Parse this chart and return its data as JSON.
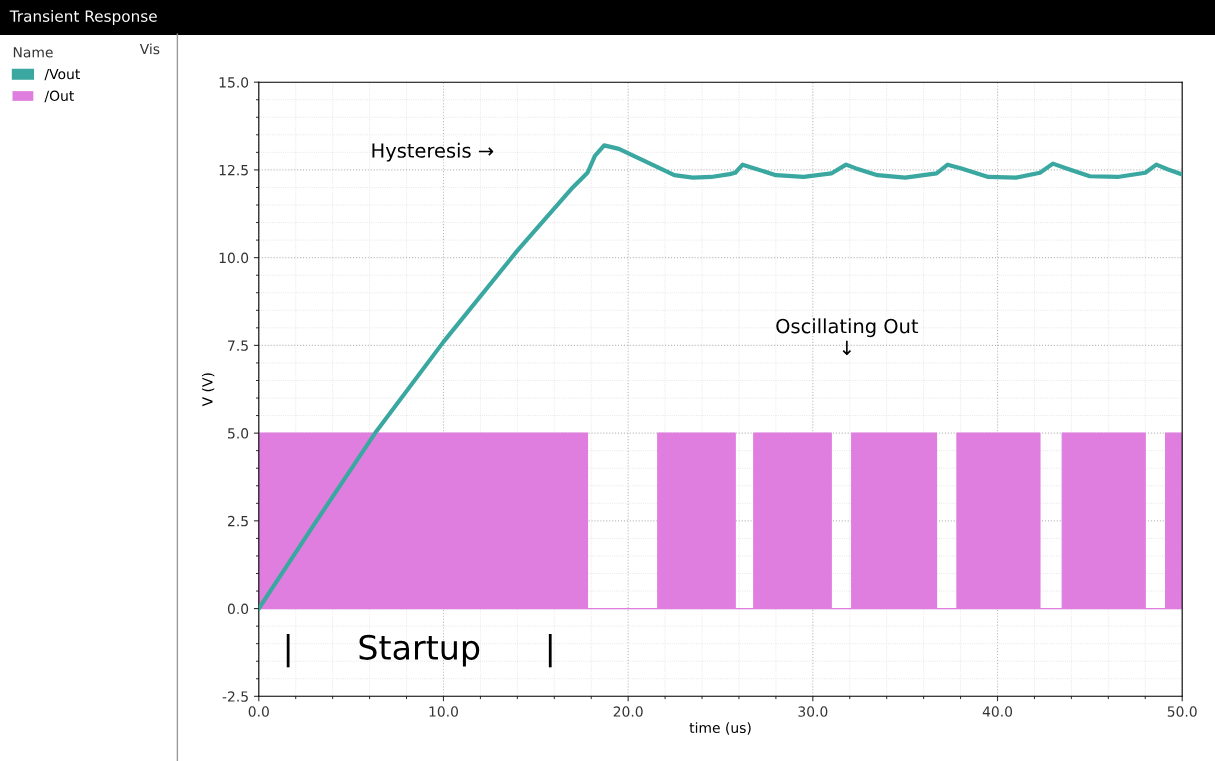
{
  "chart_data": {
    "type": "line",
    "title": "Transient Response",
    "xlabel": "time (us)",
    "ylabel": "V (V)",
    "legend_title": "Name",
    "series": [
      {
        "name": "/Vout",
        "color": "#3aa8a0",
        "x": [
          0,
          3,
          6.3,
          10,
          14,
          17,
          17.8,
          18.2,
          18.7,
          19.5,
          20.5,
          21.5,
          22.5,
          23.5,
          24.5,
          25.5,
          25.8,
          26.2,
          26.8,
          28,
          29.5,
          31.0,
          31.8,
          32.3,
          33.5,
          35,
          36.7,
          37.3,
          38,
          39.5,
          41,
          42.3,
          43.0,
          43.7,
          45,
          46.5,
          48,
          48.6,
          49.2,
          50
        ],
        "values": [
          0,
          2.4,
          5.0,
          7.6,
          10.2,
          12.0,
          12.42,
          12.9,
          13.2,
          13.1,
          12.85,
          12.6,
          12.35,
          12.28,
          12.3,
          12.38,
          12.42,
          12.65,
          12.55,
          12.35,
          12.3,
          12.4,
          12.65,
          12.55,
          12.35,
          12.28,
          12.4,
          12.65,
          12.55,
          12.3,
          12.28,
          12.42,
          12.68,
          12.55,
          12.32,
          12.3,
          12.42,
          12.65,
          12.52,
          12.37
        ]
      },
      {
        "name": "/Out",
        "color": "#e07ee0",
        "type": "area",
        "x": [
          0,
          17.8,
          17.8,
          21.6,
          21.6,
          25.8,
          25.8,
          26.8,
          26.8,
          31.0,
          31.0,
          32.1,
          32.1,
          36.7,
          36.7,
          37.8,
          37.8,
          42.3,
          42.3,
          43.5,
          43.5,
          48.0,
          48.0,
          49.1,
          49.1,
          50
        ],
        "values": [
          5,
          5,
          0,
          0,
          5,
          5,
          0,
          0,
          5,
          5,
          0,
          0,
          5,
          5,
          0,
          0,
          5,
          5,
          0,
          0,
          5,
          5,
          0,
          0,
          5,
          5
        ]
      }
    ],
    "xlim": [
      0,
      50
    ],
    "xticks": [
      {
        "value": 0,
        "label": "0.0"
      },
      {
        "value": 10,
        "label": "10.0"
      },
      {
        "value": 20,
        "label": "20.0"
      },
      {
        "value": 30,
        "label": "30.0"
      },
      {
        "value": 40,
        "label": "40.0"
      },
      {
        "value": 50,
        "label": "50.0"
      }
    ],
    "ylim": [
      -2.5,
      15
    ],
    "yticks": [
      {
        "value": -2.5,
        "label": "-2.5"
      },
      {
        "value": 0,
        "label": "0.0"
      },
      {
        "value": 2.5,
        "label": "2.5"
      },
      {
        "value": 5,
        "label": "5.0"
      },
      {
        "value": 7.5,
        "label": "7.5"
      },
      {
        "value": 10,
        "label": "10.0"
      },
      {
        "value": 12.5,
        "label": "12.5"
      },
      {
        "value": 15,
        "label": "15.0"
      }
    ],
    "grid": true,
    "legend": "left",
    "annotations": [
      "Vis",
      "Hysteresis →",
      "Oscillating Out\n↓",
      "|      Startup      |"
    ]
  }
}
